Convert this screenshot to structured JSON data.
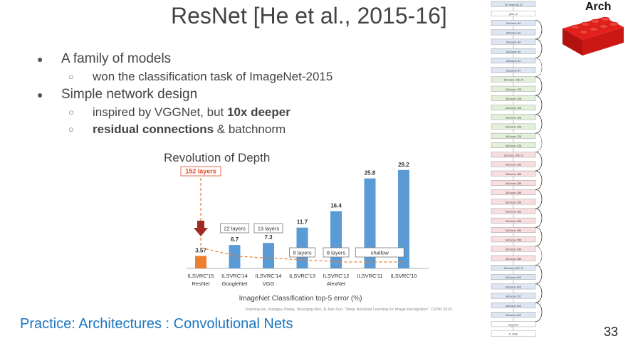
{
  "slide": {
    "title": "ResNet [He et al., 2015-16]",
    "bullets": [
      {
        "text": "A family of models",
        "sub": [
          "won the classification task of ImageNet-2015"
        ]
      },
      {
        "text": "Simple network design"
      }
    ],
    "sub2": {
      "plain": "inspired by VGGNet, but ",
      "bold": "10x deeper"
    },
    "sub3": {
      "bold": "residual connections",
      "plain": " & batchnorm"
    },
    "footer_link": "Practice: Architectures : Convolutional Nets",
    "page_number": "33",
    "arch_label": "Arch"
  },
  "chart_data": {
    "type": "bar",
    "title": "Revolution of Depth",
    "xlabel": "ImageNet Classification top-5 error (%)",
    "categories": [
      [
        "ILSVRC'15",
        "ResNet"
      ],
      [
        "ILSVRC'14",
        "GoogleNet"
      ],
      [
        "ILSVRC'14",
        "VGG"
      ],
      [
        "ILSVRC'13",
        ""
      ],
      [
        "ILSVRC'12",
        "AlexNet"
      ],
      [
        "ILSVRC'11",
        ""
      ],
      [
        "ILSVRC'10",
        ""
      ]
    ],
    "values": [
      3.57,
      6.7,
      7.3,
      11.7,
      16.4,
      25.8,
      28.2
    ],
    "value_labels": [
      "3.57",
      "6.7",
      "7.3",
      "11.7",
      "16.4",
      "25.8",
      "28.2"
    ],
    "bar_colors": [
      "#ed7d31",
      "#5b9bd5",
      "#5b9bd5",
      "#5b9bd5",
      "#5b9bd5",
      "#5b9bd5",
      "#5b9bd5"
    ],
    "depth_labels": [
      "152 layers",
      "22 layers",
      "19 layers",
      "8 layers",
      "8 layers",
      "shallow"
    ],
    "citation": "Kaiming He, Xiangyu Zhang, Shaoqing Ren, & Jian Sun. \"Deep Residual Learning for Image Recognition\". CVPR 2016.",
    "ylim": [
      0,
      30
    ]
  },
  "resnet_diagram": {
    "layers": [
      "7x7 conv, 64, /2",
      "pool, /2",
      "3x3 conv, 64",
      "3x3 conv, 64",
      "3x3 conv, 64",
      "3x3 conv, 64",
      "3x3 conv, 64",
      "3x3 conv, 64",
      "3x3 conv, 128, /2",
      "3x3 conv, 128",
      "3x3 conv, 128",
      "3x3 conv, 128",
      "3x3 conv, 128",
      "3x3 conv, 128",
      "3x3 conv, 128",
      "3x3 conv, 128",
      "3x3 conv, 256, /2",
      "3x3 conv, 256",
      "3x3 conv, 256",
      "3x3 conv, 256",
      "3x3 conv, 256",
      "3x3 conv, 256",
      "3x3 conv, 256",
      "3x3 conv, 256",
      "3x3 conv, 256",
      "3x3 conv, 256",
      "3x3 conv, 256",
      "3x3 conv, 256",
      "3x3 conv, 512, /2",
      "3x3 conv, 512",
      "3x3 conv, 512",
      "3x3 conv, 512",
      "3x3 conv, 512",
      "3x3 conv, 512",
      "avg pool",
      "fc 1000"
    ],
    "colors": {
      "c64": "#dde6f2",
      "c128": "#e2f0d9",
      "c256": "#f8dede",
      "c512": "#dde6f2"
    }
  },
  "colors": {
    "accent_link": "#1b76c0",
    "highlight": "#e04b2a"
  }
}
